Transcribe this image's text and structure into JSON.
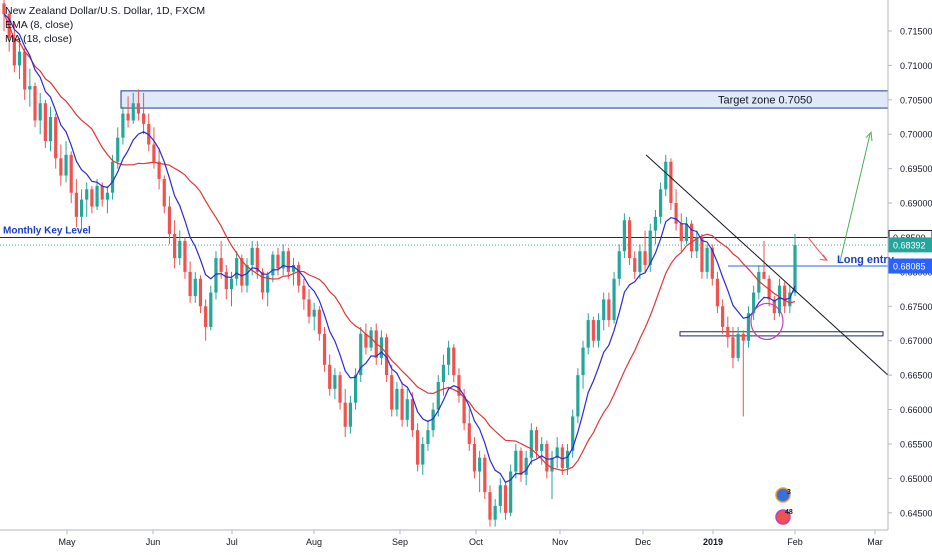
{
  "chart_data": {
    "type": "candlestick",
    "title": "New Zealand Dollar/U.S. Dollar, 1D, FXCM",
    "indicators": [
      "EMA (8, close)",
      "MA (18, close)"
    ],
    "indicator_colors": {
      "ema": "#2a2ad6",
      "ma": "#e03535"
    },
    "colors": {
      "up": "#26a69a",
      "down": "#ef5350"
    },
    "ylim": [
      0.6425,
      0.7195
    ],
    "y_ticks": [
      "0.71500",
      "0.71000",
      "0.70500",
      "0.70000",
      "0.69500",
      "0.69000",
      "0.68500",
      "0.68000",
      "0.67500",
      "0.67000",
      "0.66500",
      "0.66000",
      "0.65500",
      "0.65000",
      "0.64500"
    ],
    "x_ticks": [
      "May",
      "Jun",
      "Jul",
      "Aug",
      "Sep",
      "Oct",
      "Nov",
      "Dec",
      "2019",
      "Feb",
      "Mar"
    ],
    "price_labels": [
      {
        "text": "0.68500",
        "value": 0.685,
        "bg": "#ffffff",
        "fg": "#131722"
      },
      {
        "text": "0.68392",
        "value": 0.68392,
        "bg": "#26a69a",
        "fg": "#ffffff"
      },
      {
        "text": "0.68085",
        "value": 0.68085,
        "bg": "#2962ff",
        "fg": "#ffffff"
      }
    ],
    "annotations": {
      "target_zone": {
        "text": "Target zone 0.7050",
        "low": 0.7038,
        "high": 0.7063
      },
      "key_level": {
        "text": "Monthly Key Level",
        "value": 0.685
      },
      "long_entry": {
        "text": "Long entry",
        "value": 0.68085
      },
      "support_box": {
        "low": 0.6707,
        "high": 0.6713
      }
    },
    "event_badges": [
      {
        "text": "3"
      },
      {
        "text": "48"
      }
    ],
    "candles": [
      [
        0.719,
        0.7215,
        0.715,
        0.7175
      ],
      [
        0.7175,
        0.718,
        0.712,
        0.714
      ],
      [
        0.714,
        0.716,
        0.709,
        0.71
      ],
      [
        0.71,
        0.714,
        0.708,
        0.712
      ],
      [
        0.712,
        0.7125,
        0.705,
        0.7065
      ],
      [
        0.7065,
        0.7095,
        0.704,
        0.707
      ],
      [
        0.707,
        0.7075,
        0.701,
        0.702
      ],
      [
        0.702,
        0.706,
        0.7,
        0.7045
      ],
      [
        0.7045,
        0.705,
        0.698,
        0.699
      ],
      [
        0.699,
        0.704,
        0.6975,
        0.7025
      ],
      [
        0.7025,
        0.703,
        0.695,
        0.6965
      ],
      [
        0.6965,
        0.6985,
        0.6925,
        0.694
      ],
      [
        0.694,
        0.699,
        0.693,
        0.697
      ],
      [
        0.697,
        0.6975,
        0.69,
        0.6915
      ],
      [
        0.6915,
        0.6935,
        0.6865,
        0.688
      ],
      [
        0.688,
        0.692,
        0.686,
        0.6905
      ],
      [
        0.6905,
        0.693,
        0.688,
        0.692
      ],
      [
        0.692,
        0.6925,
        0.6885,
        0.6895
      ],
      [
        0.6895,
        0.6935,
        0.689,
        0.6925
      ],
      [
        0.6925,
        0.693,
        0.6895,
        0.6905
      ],
      [
        0.6905,
        0.6925,
        0.6885,
        0.6915
      ],
      [
        0.6915,
        0.697,
        0.6905,
        0.696
      ],
      [
        0.696,
        0.701,
        0.695,
        0.6995
      ],
      [
        0.6995,
        0.704,
        0.6985,
        0.703
      ],
      [
        0.703,
        0.7055,
        0.701,
        0.702
      ],
      [
        0.702,
        0.706,
        0.7015,
        0.7045
      ],
      [
        0.7045,
        0.7065,
        0.702,
        0.703
      ],
      [
        0.703,
        0.706,
        0.7,
        0.7015
      ],
      [
        0.7015,
        0.703,
        0.6975,
        0.6985
      ],
      [
        0.6985,
        0.701,
        0.695,
        0.696
      ],
      [
        0.696,
        0.698,
        0.692,
        0.6935
      ],
      [
        0.6935,
        0.694,
        0.6885,
        0.6895
      ],
      [
        0.6895,
        0.691,
        0.684,
        0.6855
      ],
      [
        0.6855,
        0.6875,
        0.6805,
        0.682
      ],
      [
        0.682,
        0.686,
        0.681,
        0.6845
      ],
      [
        0.6845,
        0.685,
        0.679,
        0.68
      ],
      [
        0.68,
        0.6815,
        0.6755,
        0.6765
      ],
      [
        0.6765,
        0.68,
        0.6755,
        0.679
      ],
      [
        0.679,
        0.6795,
        0.674,
        0.675
      ],
      [
        0.675,
        0.676,
        0.67,
        0.672
      ],
      [
        0.672,
        0.678,
        0.6715,
        0.677
      ],
      [
        0.677,
        0.683,
        0.676,
        0.682
      ],
      [
        0.682,
        0.6845,
        0.679,
        0.68
      ],
      [
        0.68,
        0.681,
        0.676,
        0.6775
      ],
      [
        0.6775,
        0.68,
        0.675,
        0.679
      ],
      [
        0.679,
        0.683,
        0.678,
        0.682
      ],
      [
        0.682,
        0.6825,
        0.677,
        0.678
      ],
      [
        0.678,
        0.682,
        0.677,
        0.681
      ],
      [
        0.681,
        0.6845,
        0.6795,
        0.6835
      ],
      [
        0.6835,
        0.6845,
        0.679,
        0.68
      ],
      [
        0.68,
        0.6805,
        0.676,
        0.677
      ],
      [
        0.677,
        0.68,
        0.675,
        0.6795
      ],
      [
        0.6795,
        0.683,
        0.6785,
        0.6825
      ],
      [
        0.6825,
        0.6835,
        0.6795,
        0.6805
      ],
      [
        0.6805,
        0.684,
        0.6795,
        0.683
      ],
      [
        0.683,
        0.6835,
        0.679,
        0.68
      ],
      [
        0.68,
        0.682,
        0.678,
        0.681
      ],
      [
        0.681,
        0.6815,
        0.677,
        0.678
      ],
      [
        0.678,
        0.679,
        0.6745,
        0.676
      ],
      [
        0.676,
        0.6775,
        0.6725,
        0.6735
      ],
      [
        0.6735,
        0.6755,
        0.6715,
        0.6745
      ],
      [
        0.6745,
        0.675,
        0.67,
        0.671
      ],
      [
        0.671,
        0.672,
        0.6655,
        0.6665
      ],
      [
        0.6665,
        0.668,
        0.662,
        0.663
      ],
      [
        0.663,
        0.666,
        0.6615,
        0.665
      ],
      [
        0.665,
        0.6655,
        0.66,
        0.661
      ],
      [
        0.661,
        0.663,
        0.656,
        0.6575
      ],
      [
        0.6575,
        0.662,
        0.6565,
        0.661
      ],
      [
        0.661,
        0.666,
        0.66,
        0.665
      ],
      [
        0.665,
        0.672,
        0.664,
        0.671
      ],
      [
        0.671,
        0.6725,
        0.668,
        0.669
      ],
      [
        0.669,
        0.672,
        0.6685,
        0.6715
      ],
      [
        0.6715,
        0.6725,
        0.6665,
        0.6675
      ],
      [
        0.6675,
        0.6715,
        0.6665,
        0.6705
      ],
      [
        0.6705,
        0.671,
        0.664,
        0.665
      ],
      [
        0.665,
        0.6665,
        0.659,
        0.66
      ],
      [
        0.66,
        0.664,
        0.659,
        0.663
      ],
      [
        0.663,
        0.664,
        0.6575,
        0.6585
      ],
      [
        0.6585,
        0.663,
        0.6575,
        0.6615
      ],
      [
        0.6615,
        0.6625,
        0.656,
        0.657
      ],
      [
        0.657,
        0.658,
        0.651,
        0.652
      ],
      [
        0.652,
        0.656,
        0.6505,
        0.655
      ],
      [
        0.655,
        0.6585,
        0.654,
        0.657
      ],
      [
        0.657,
        0.661,
        0.656,
        0.66
      ],
      [
        0.66,
        0.665,
        0.659,
        0.664
      ],
      [
        0.664,
        0.668,
        0.662,
        0.6665
      ],
      [
        0.6665,
        0.67,
        0.665,
        0.669
      ],
      [
        0.669,
        0.6695,
        0.664,
        0.665
      ],
      [
        0.665,
        0.666,
        0.661,
        0.662
      ],
      [
        0.662,
        0.663,
        0.657,
        0.658
      ],
      [
        0.658,
        0.66,
        0.654,
        0.655
      ],
      [
        0.655,
        0.656,
        0.65,
        0.651
      ],
      [
        0.651,
        0.654,
        0.648,
        0.653
      ],
      [
        0.653,
        0.6535,
        0.647,
        0.648
      ],
      [
        0.648,
        0.649,
        0.643,
        0.644
      ],
      [
        0.644,
        0.647,
        0.643,
        0.646
      ],
      [
        0.646,
        0.65,
        0.645,
        0.649
      ],
      [
        0.649,
        0.6495,
        0.644,
        0.645
      ],
      [
        0.645,
        0.652,
        0.6445,
        0.651
      ],
      [
        0.651,
        0.655,
        0.65,
        0.654
      ],
      [
        0.654,
        0.6545,
        0.6495,
        0.6505
      ],
      [
        0.6505,
        0.654,
        0.649,
        0.653
      ],
      [
        0.653,
        0.658,
        0.652,
        0.657
      ],
      [
        0.657,
        0.6575,
        0.653,
        0.654
      ],
      [
        0.654,
        0.656,
        0.652,
        0.655
      ],
      [
        0.655,
        0.6555,
        0.65,
        0.651
      ],
      [
        0.651,
        0.654,
        0.647,
        0.653
      ],
      [
        0.653,
        0.656,
        0.6515,
        0.6545
      ],
      [
        0.6545,
        0.655,
        0.6505,
        0.6515
      ],
      [
        0.6515,
        0.655,
        0.6505,
        0.654
      ],
      [
        0.654,
        0.66,
        0.653,
        0.659
      ],
      [
        0.659,
        0.666,
        0.658,
        0.665
      ],
      [
        0.665,
        0.67,
        0.663,
        0.669
      ],
      [
        0.669,
        0.674,
        0.668,
        0.673
      ],
      [
        0.673,
        0.6735,
        0.669,
        0.67
      ],
      [
        0.67,
        0.674,
        0.669,
        0.673
      ],
      [
        0.673,
        0.677,
        0.6715,
        0.676
      ],
      [
        0.676,
        0.677,
        0.672,
        0.673
      ],
      [
        0.673,
        0.68,
        0.6725,
        0.679
      ],
      [
        0.679,
        0.684,
        0.678,
        0.683
      ],
      [
        0.683,
        0.6885,
        0.682,
        0.6875
      ],
      [
        0.6875,
        0.688,
        0.681,
        0.682
      ],
      [
        0.682,
        0.683,
        0.679,
        0.68
      ],
      [
        0.68,
        0.684,
        0.679,
        0.683
      ],
      [
        0.683,
        0.686,
        0.68,
        0.681
      ],
      [
        0.681,
        0.687,
        0.68,
        0.686
      ],
      [
        0.686,
        0.689,
        0.684,
        0.688
      ],
      [
        0.688,
        0.693,
        0.687,
        0.692
      ],
      [
        0.692,
        0.697,
        0.691,
        0.696
      ],
      [
        0.696,
        0.6965,
        0.689,
        0.69
      ],
      [
        0.69,
        0.692,
        0.686,
        0.687
      ],
      [
        0.687,
        0.6885,
        0.683,
        0.6845
      ],
      [
        0.6845,
        0.688,
        0.684,
        0.687
      ],
      [
        0.687,
        0.6875,
        0.682,
        0.683
      ],
      [
        0.683,
        0.686,
        0.682,
        0.685
      ],
      [
        0.685,
        0.6855,
        0.679,
        0.68
      ],
      [
        0.68,
        0.684,
        0.679,
        0.6835
      ],
      [
        0.6835,
        0.684,
        0.678,
        0.679
      ],
      [
        0.679,
        0.68,
        0.674,
        0.675
      ],
      [
        0.675,
        0.676,
        0.671,
        0.672
      ],
      [
        0.672,
        0.6735,
        0.669,
        0.6705
      ],
      [
        0.6705,
        0.672,
        0.666,
        0.6675
      ],
      [
        0.6675,
        0.672,
        0.667,
        0.671
      ],
      [
        0.671,
        0.6715,
        0.659,
        0.67
      ],
      [
        0.67,
        0.675,
        0.669,
        0.674
      ],
      [
        0.674,
        0.678,
        0.673,
        0.677
      ],
      [
        0.677,
        0.681,
        0.676,
        0.68
      ],
      [
        0.68,
        0.6845,
        0.679,
        0.679
      ],
      [
        0.679,
        0.6795,
        0.675,
        0.676
      ],
      [
        0.676,
        0.6765,
        0.673,
        0.674
      ],
      [
        0.674,
        0.679,
        0.6735,
        0.678
      ],
      [
        0.678,
        0.6785,
        0.674,
        0.675
      ],
      [
        0.675,
        0.678,
        0.674,
        0.677
      ],
      [
        0.677,
        0.6855,
        0.6765,
        0.6839
      ]
    ]
  }
}
